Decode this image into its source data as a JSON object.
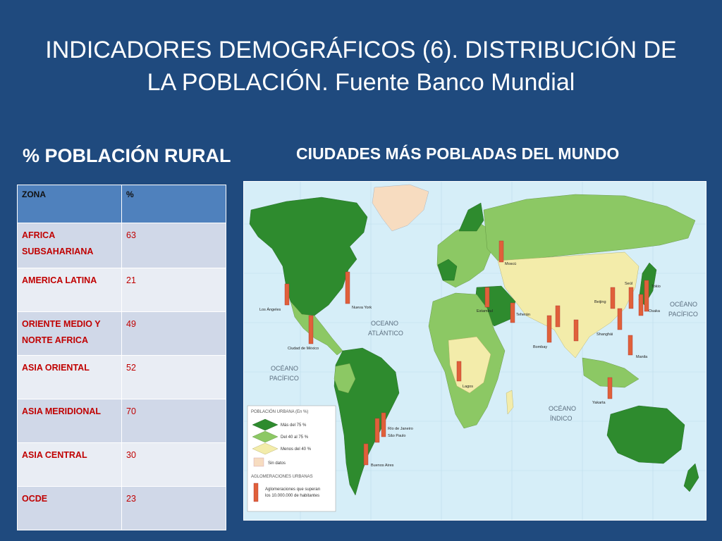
{
  "slide": {
    "title": "INDICADORES DEMOGRÁFICOS (6). DISTRIBUCIÓN DE LA POBLACIÓN. Fuente Banco Mundial",
    "left_heading": "% POBLACIÓN RURAL",
    "right_heading": "CIUDADES MÁS POBLADAS DEL MUNDO"
  },
  "table": {
    "headers": [
      "ZONA",
      "%"
    ],
    "rows": [
      {
        "zone": "AFRICA SUBSAHARIANA",
        "value": "63"
      },
      {
        "zone": "AMERICA LATINA",
        "value": "21"
      },
      {
        "zone": "ORIENTE MEDIO Y NORTE AFRICA",
        "value": "49"
      },
      {
        "zone": "ASIA ORIENTAL",
        "value": "52"
      },
      {
        "zone": "ASIA MERIDIONAL",
        "value": "70"
      },
      {
        "zone": "ASIA CENTRAL",
        "value": "30"
      },
      {
        "zone": "OCDE",
        "value": "23"
      }
    ]
  },
  "map": {
    "ocean_labels": {
      "atlantic_1": "OCEANO",
      "atlantic_2": "ATLÁNTICO",
      "pacific_w_1": "OCÉANO",
      "pacific_w_2": "PACÍFICO",
      "pacific_e_1": "OCÉANO",
      "pacific_e_2": "PACÍFICO",
      "indian_1": "OCÉANO",
      "indian_2": "ÍNDICO"
    },
    "cities": {
      "los_angeles": "Los Ángeles",
      "nueva_york": "Nueva York",
      "mexico": "Ciudad de México",
      "moscu": "Moscú",
      "estambul": "Estambul",
      "teheran": "Teherán",
      "beijing": "Beijing",
      "seul": "Seúl",
      "tokio": "Tokio",
      "osaka": "Osaka",
      "shanghai": "Shanghái",
      "bombay": "Bombay",
      "lagos": "Lagos",
      "manila": "Manila",
      "yakarta": "Yakarta",
      "rio": "Río de Janeiro",
      "sao_paulo": "São Paulo",
      "buenos_aires": "Buenos Aires"
    },
    "legend": {
      "title": "POBLACIÓN URBANA (En %)",
      "more75": "Más del 75 %",
      "mid": "Del 40 al 75 %",
      "less40": "Menos del 40 %",
      "nodata": "Sin datos",
      "agglo_title": "AGLOMERACIONES URBANAS",
      "agglo_1": "Aglomeraciones que superan",
      "agglo_2": "los 10.000.000 de habitantes"
    },
    "colors": {
      "ocean": "#d6eef8",
      "high": "#2e8b2e",
      "mid": "#8cc864",
      "low": "#f3ecaa",
      "nodata": "#f7dcc0",
      "city_bar": "#e0603a"
    }
  }
}
